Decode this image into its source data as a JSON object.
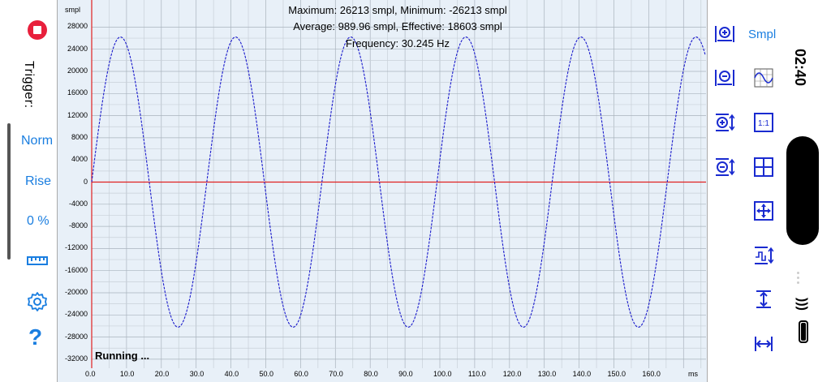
{
  "left_panel": {
    "trigger_label": "Trigger:",
    "mode_label": "Norm",
    "edge_label": "Rise",
    "level_label": "0 %"
  },
  "plot": {
    "stats_line1": "Maximum: 26213 smpl, Minimum: -26213 smpl",
    "stats_line2": "Average: 989.96 smpl, Effective: 18603 smpl",
    "stats_line3": "Frequency: 30.245 Hz",
    "status": "Running ...",
    "y_unit": "smpl",
    "x_unit": "ms",
    "y_ticks": [
      "28000",
      "24000",
      "20000",
      "16000",
      "12000",
      "8000",
      "4000",
      "0",
      "-4000",
      "-8000",
      "-12000",
      "-16000",
      "-20000",
      "-24000",
      "-28000",
      "-32000"
    ],
    "x_ticks": [
      "0.0",
      "10.0",
      "20.0",
      "30.0",
      "40.0",
      "50.0",
      "60.0",
      "70.0",
      "80.0",
      "90.0",
      "100.0",
      "110.0",
      "120.0",
      "130.0",
      "140.0",
      "150.0",
      "160.0"
    ]
  },
  "right_panel": {
    "unit_label": "Smpl"
  },
  "status_bar": {
    "time": "02:40"
  },
  "colors": {
    "accent": "#1a7ee0",
    "trace": "#1a1acc",
    "zero_line": "#e02020",
    "plot_bg": "#e8f0f8",
    "stop": "#e8203c"
  },
  "chart_data": {
    "type": "line",
    "title": "",
    "xlabel": "ms",
    "ylabel": "smpl",
    "xlim": [
      0,
      177
    ],
    "ylim": [
      -33000,
      30000
    ],
    "grid": true,
    "series": [
      {
        "name": "",
        "description": "sine wave, amplitude 26213, frequency 30.245 Hz",
        "amplitude": 26213,
        "frequency_hz": 30.245,
        "x_ms": [
          0,
          8.27,
          16.53,
          24.8,
          33.06,
          41.33,
          49.6,
          57.86,
          66.13,
          74.39,
          82.66,
          90.93,
          99.19,
          107.46,
          115.72,
          123.99,
          132.26,
          140.52,
          148.79,
          157.05,
          165.32,
          173.59
        ],
        "y_smpl": [
          0,
          26213,
          0,
          -26213,
          0,
          26213,
          0,
          -26213,
          0,
          26213,
          0,
          -26213,
          0,
          26213,
          0,
          -26213,
          0,
          26213,
          0,
          -26213,
          0,
          26213
        ]
      }
    ]
  }
}
